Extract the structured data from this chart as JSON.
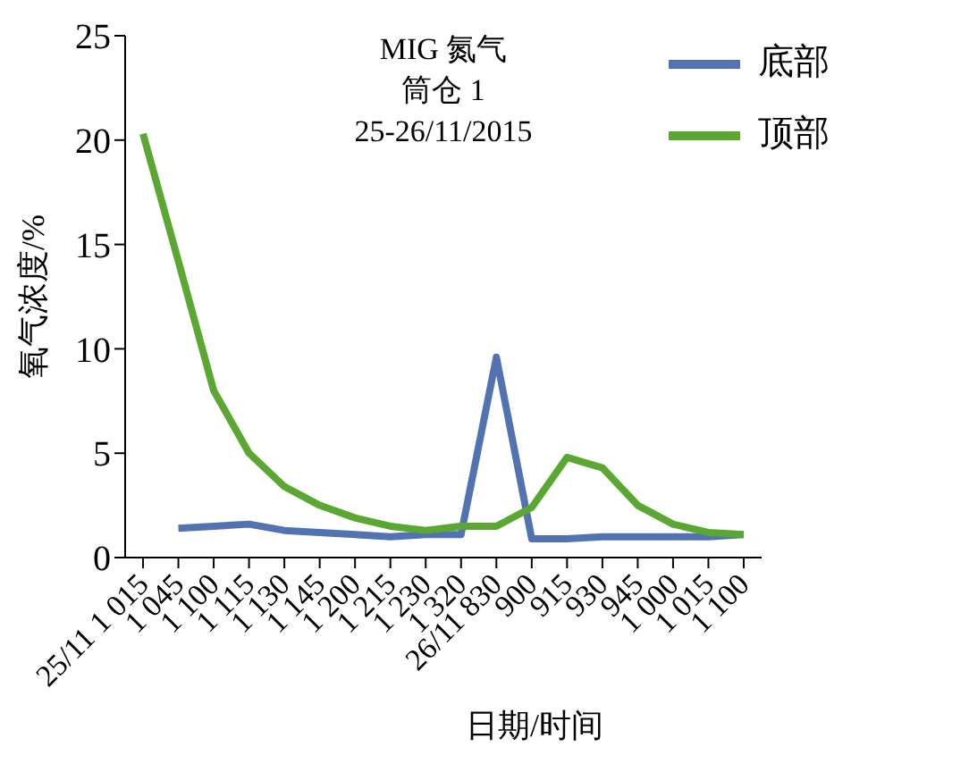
{
  "chart_data": {
    "type": "line",
    "title": "MIG 氮气筒仓 1",
    "subtitle": "25-26/11/2015",
    "xlabel": "日期/时间",
    "ylabel": "氧气浓度/%",
    "categories": [
      "25/11 1 015",
      "1 045",
      "1 100",
      "1 115",
      "1 130",
      "1 145",
      "1 200",
      "1 215",
      "1 230",
      "1 320",
      "26/11 830",
      "900",
      "915",
      "930",
      "945",
      "1 000",
      "1 015",
      "1 100"
    ],
    "series": [
      {
        "name": "底部",
        "color": "#5272b2",
        "values": [
          null,
          1.4,
          1.5,
          1.6,
          1.3,
          1.2,
          1.1,
          1.0,
          1.1,
          1.1,
          9.6,
          0.9,
          0.9,
          1.0,
          1.0,
          1.0,
          1.0,
          1.1
        ]
      },
      {
        "name": "顶部",
        "color": "#5aa832",
        "values": [
          20.3,
          14.2,
          8.0,
          5.0,
          3.4,
          2.5,
          1.9,
          1.5,
          1.3,
          1.5,
          1.5,
          2.4,
          4.8,
          4.3,
          2.5,
          1.6,
          1.2,
          1.1
        ]
      }
    ],
    "ylim": [
      0,
      25
    ],
    "yticks": [
      0,
      5,
      10,
      15,
      20,
      25
    ],
    "grid": false,
    "legend": "top right",
    "marker": "none",
    "line_style": "solid"
  }
}
